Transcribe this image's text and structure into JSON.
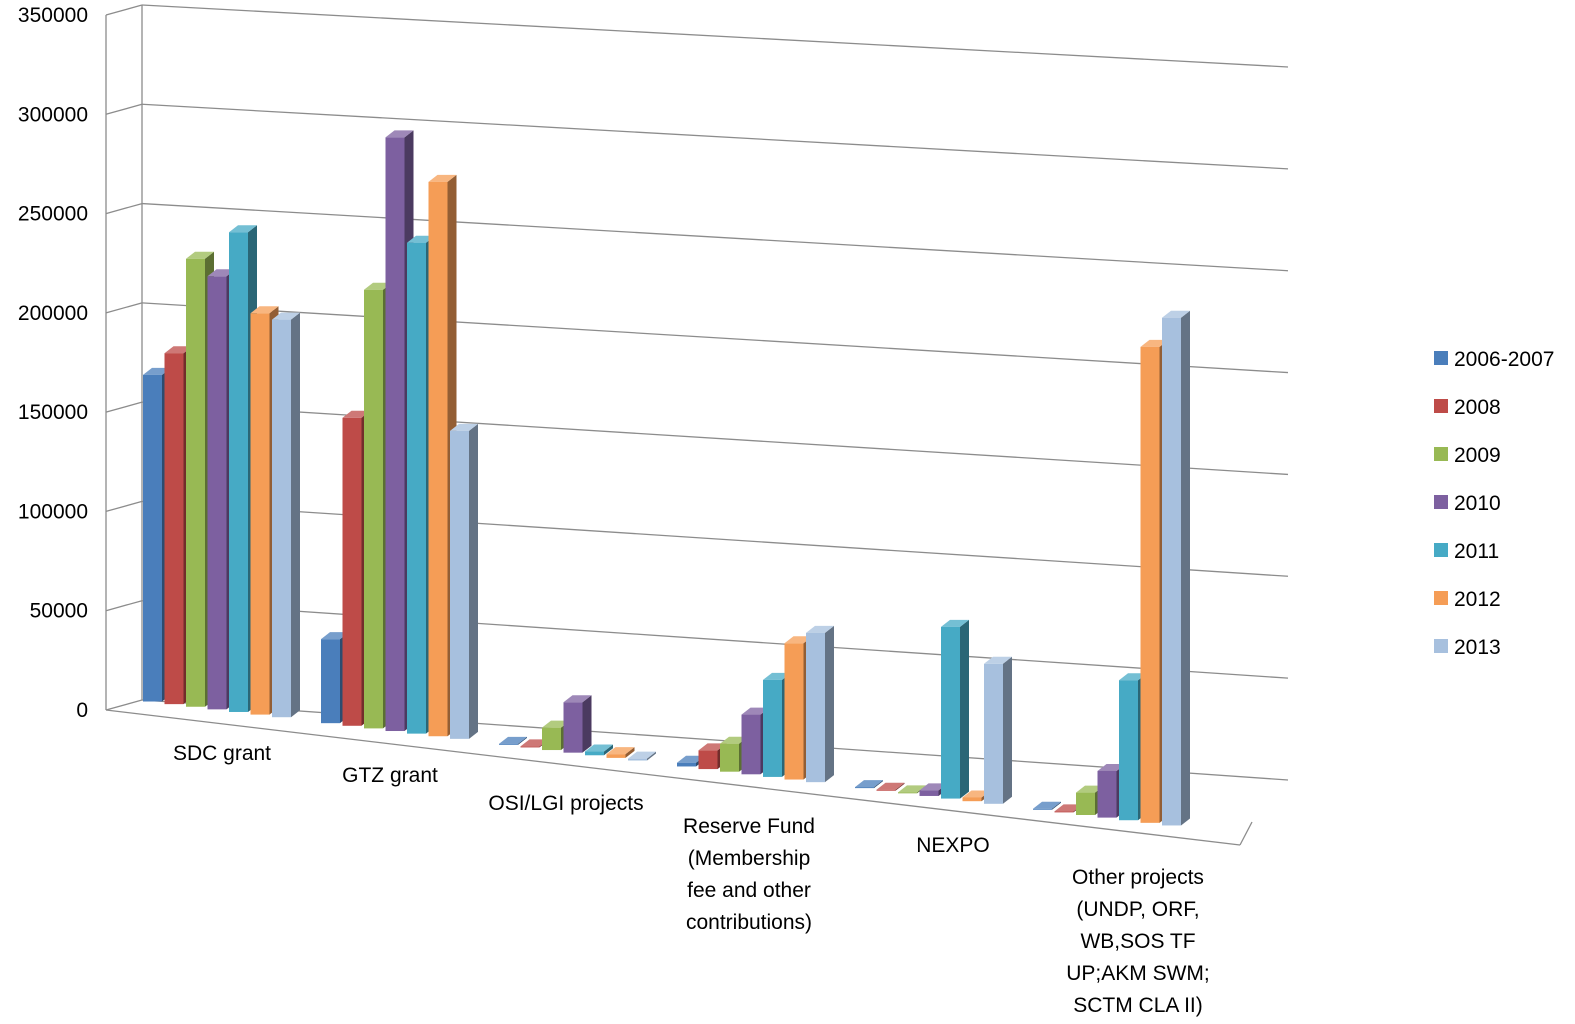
{
  "chart_data": {
    "type": "bar",
    "title": "",
    "xlabel": "",
    "ylabel": "",
    "ylim": [
      0,
      350000
    ],
    "yticks": [
      "0",
      "50000",
      "100000",
      "150000",
      "200000",
      "250000",
      "300000",
      "350000"
    ],
    "grid": true,
    "legend_position": "right",
    "categories": [
      [
        "SDC grant"
      ],
      [
        "GTZ grant"
      ],
      [
        "OSI/LGI projects"
      ],
      [
        "Reserve Fund",
        "(Membership",
        "fee and other",
        "contributions)"
      ],
      [
        "NEXPO"
      ],
      [
        "Other projects",
        "(UNDP, ORF,",
        "WB,SOS TF",
        "UP;AKM SWM;",
        "SCTM CLA II)"
      ]
    ],
    "series": [
      {
        "name": "2006-2007",
        "color": "#4a7ebb",
        "values": [
          175000,
          45000,
          0,
          2000,
          0,
          0
        ]
      },
      {
        "name": "2008",
        "color": "#be4b48",
        "values": [
          188000,
          165000,
          0,
          10000,
          0,
          0
        ]
      },
      {
        "name": "2009",
        "color": "#98b954",
        "values": [
          240000,
          235000,
          12000,
          15000,
          0,
          12000
        ]
      },
      {
        "name": "2010",
        "color": "#7d60a0",
        "values": [
          232000,
          318000,
          27000,
          32000,
          3000,
          25000
        ]
      },
      {
        "name": "2011",
        "color": "#46aac5",
        "values": [
          257000,
          263000,
          2000,
          52000,
          92000,
          75000
        ]
      },
      {
        "name": "2012",
        "color": "#f59d56",
        "values": [
          215000,
          297000,
          2000,
          73000,
          2000,
          255000
        ]
      },
      {
        "name": "2013",
        "color": "#a7c0de",
        "values": [
          213000,
          165000,
          1000,
          80000,
          75000,
          272000
        ]
      }
    ]
  }
}
